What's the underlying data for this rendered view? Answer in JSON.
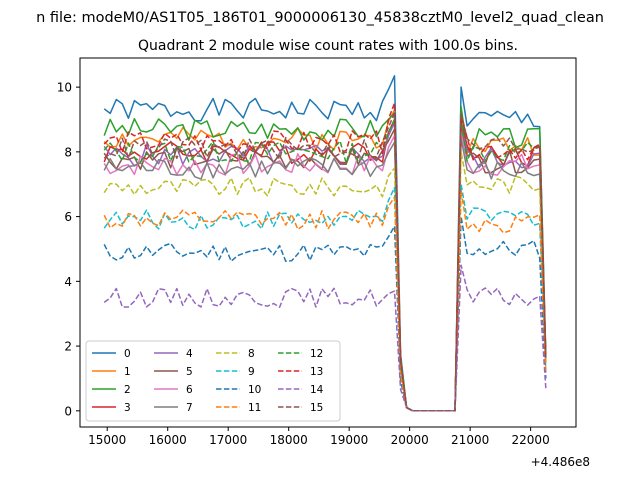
{
  "figure": {
    "suptitle": "n file: modeM0/AS1T05_186T01_9000006130_45838cztM0_level2_quad_clean",
    "offset_label": "+4.486e8"
  },
  "chart_data": {
    "type": "line",
    "title": "Quadrant 2 module wise count rates with 100.0s bins.",
    "xlabel": "",
    "ylabel": "",
    "xlim": [
      14550,
      22750
    ],
    "ylim": [
      -0.5,
      10.9
    ],
    "x_ticks": [
      15000,
      16000,
      17000,
      18000,
      19000,
      20000,
      21000,
      22000
    ],
    "y_ticks": [
      0,
      2,
      4,
      6,
      8,
      10
    ],
    "x_tick_labels": [
      "15000",
      "16000",
      "17000",
      "18000",
      "19000",
      "20000",
      "21000",
      "22000"
    ],
    "y_tick_labels": [
      "0",
      "2",
      "4",
      "6",
      "8",
      "10"
    ],
    "grid": false,
    "legend_position": "lower-left",
    "legend_columns": 4,
    "x_segments": [
      {
        "start": 14950,
        "step": 100,
        "count": 49
      },
      {
        "start": 20850,
        "step": 100,
        "count": 15
      }
    ],
    "drop_x": [
      19850,
      19950,
      20050,
      20150,
      20250,
      20350,
      20450,
      20550,
      20650,
      20750
    ],
    "drop_y": [
      1.6,
      0.1,
      0,
      0,
      0,
      0,
      0,
      0,
      0,
      0
    ],
    "series": [
      {
        "name": "0",
        "color": "#1f77b4",
        "dash": "solid",
        "base1": 9.3,
        "base2": 9.0,
        "jitter": 0.35,
        "end": 10.35
      },
      {
        "name": "1",
        "color": "#ff7f0e",
        "dash": "solid",
        "base1": 8.4,
        "base2": 8.2,
        "jitter": 0.35,
        "end": 9.3
      },
      {
        "name": "2",
        "color": "#2ca02c",
        "dash": "solid",
        "base1": 8.7,
        "base2": 8.4,
        "jitter": 0.35,
        "end": 9.2
      },
      {
        "name": "3",
        "color": "#d62728",
        "dash": "solid",
        "base1": 8.0,
        "base2": 7.9,
        "jitter": 0.35,
        "end": 9.0
      },
      {
        "name": "4",
        "color": "#9467bd",
        "dash": "solid",
        "base1": 7.9,
        "base2": 7.8,
        "jitter": 0.35,
        "end": 8.9
      },
      {
        "name": "5",
        "color": "#8c564b",
        "dash": "solid",
        "base1": 7.8,
        "base2": 7.7,
        "jitter": 0.35,
        "end": 8.7
      },
      {
        "name": "6",
        "color": "#e377c2",
        "dash": "solid",
        "base1": 7.6,
        "base2": 7.6,
        "jitter": 0.35,
        "end": 8.5
      },
      {
        "name": "7",
        "color": "#7f7f7f",
        "dash": "solid",
        "base1": 7.5,
        "base2": 7.4,
        "jitter": 0.35,
        "end": 8.3
      },
      {
        "name": "8",
        "color": "#bcbd22",
        "dash": "dashed",
        "base1": 6.9,
        "base2": 7.0,
        "jitter": 0.3,
        "end": 7.5
      },
      {
        "name": "9",
        "color": "#17becf",
        "dash": "dashed",
        "base1": 5.9,
        "base2": 6.0,
        "jitter": 0.3,
        "end": 6.9
      },
      {
        "name": "10",
        "color": "#1f77b4",
        "dash": "dashed",
        "base1": 4.9,
        "base2": 5.0,
        "jitter": 0.3,
        "end": 5.7
      },
      {
        "name": "11",
        "color": "#ff7f0e",
        "dash": "dashed",
        "base1": 5.9,
        "base2": 5.8,
        "jitter": 0.3,
        "end": 6.6
      },
      {
        "name": "12",
        "color": "#2ca02c",
        "dash": "dashed",
        "base1": 8.0,
        "base2": 8.0,
        "jitter": 0.35,
        "end": 9.0
      },
      {
        "name": "13",
        "color": "#d62728",
        "dash": "dashed",
        "base1": 8.3,
        "base2": 8.1,
        "jitter": 0.35,
        "end": 9.5
      },
      {
        "name": "14",
        "color": "#9467bd",
        "dash": "dashed",
        "base1": 3.5,
        "base2": 3.5,
        "jitter": 0.3,
        "end": 3.7
      },
      {
        "name": "15",
        "color": "#8c564b",
        "dash": "dashed",
        "base1": 8.1,
        "base2": 8.2,
        "jitter": 0.35,
        "end": 9.2
      }
    ]
  }
}
